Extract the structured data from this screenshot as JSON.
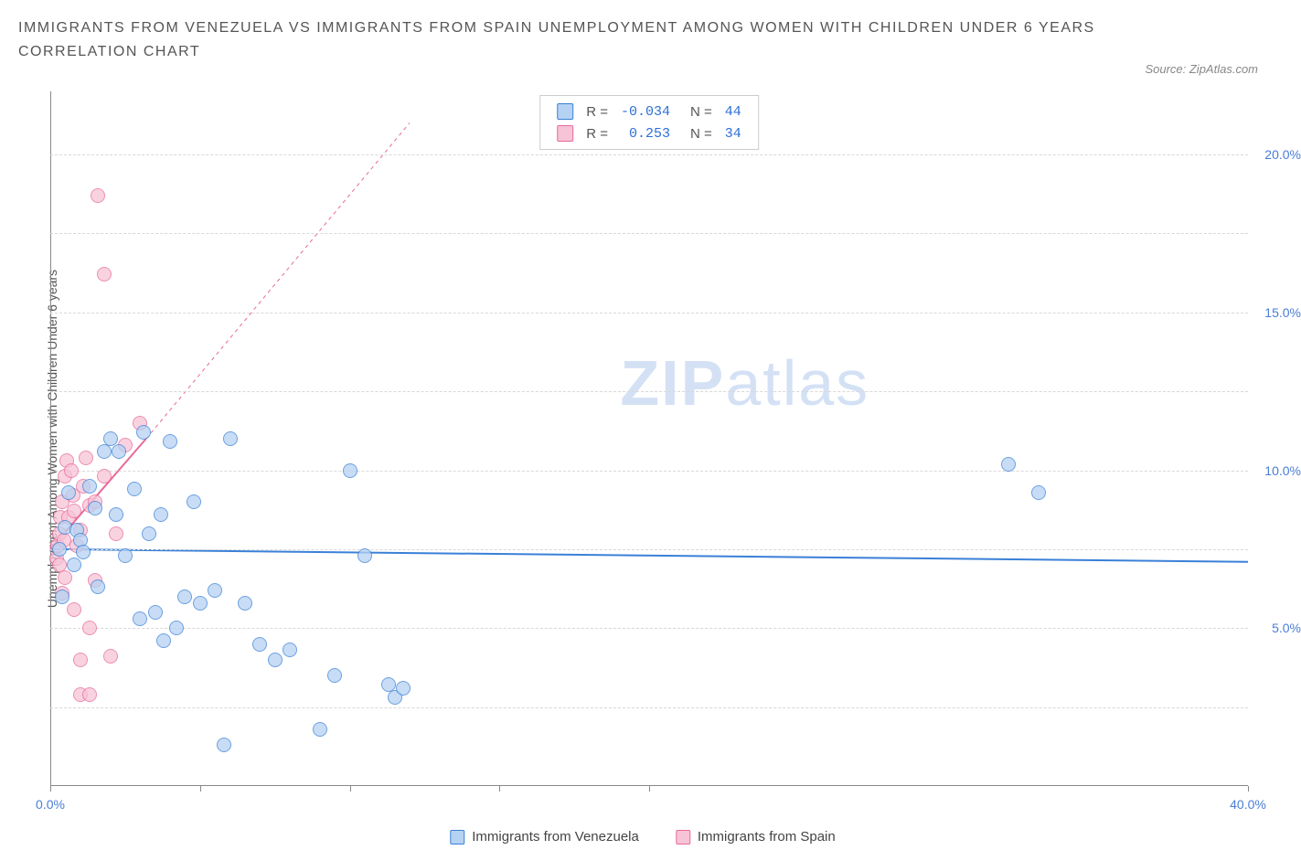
{
  "title_line1": "IMMIGRANTS FROM VENEZUELA VS IMMIGRANTS FROM SPAIN UNEMPLOYMENT AMONG WOMEN WITH CHILDREN UNDER 6 YEARS",
  "title_line2": "CORRELATION CHART",
  "source_label": "Source: ZipAtlas.com",
  "y_axis_label": "Unemployment Among Women with Children Under 6 years",
  "watermark_a": "ZIP",
  "watermark_b": "atlas",
  "chart": {
    "type": "scatter",
    "xlim": [
      0,
      40
    ],
    "ylim": [
      0,
      22
    ],
    "xticks": [
      0,
      5,
      10,
      15,
      20,
      40
    ],
    "xtick_labels": {
      "0": "0.0%",
      "40": "40.0%"
    },
    "yticks": [
      5,
      10,
      15,
      20
    ],
    "ytick_labels": {
      "5": "5.0%",
      "10": "10.0%",
      "15": "15.0%",
      "20": "20.0%"
    },
    "grid_y": [
      2.5,
      5,
      7.5,
      10,
      12.5,
      15,
      17.5,
      20
    ],
    "grid_color": "#d8d8d8",
    "background_color": "#ffffff",
    "marker_radius": 8,
    "series": [
      {
        "name": "Immigrants from Venezuela",
        "stroke": "#3a80d8",
        "fill": "#b6d2f2",
        "fill_opacity": 0.75,
        "R": "-0.034",
        "N": "44",
        "points": [
          [
            0.3,
            7.5
          ],
          [
            0.5,
            8.2
          ],
          [
            0.6,
            9.3
          ],
          [
            0.8,
            7.0
          ],
          [
            0.9,
            8.1
          ],
          [
            1.0,
            7.8
          ],
          [
            1.3,
            9.5
          ],
          [
            1.5,
            8.8
          ],
          [
            1.6,
            6.3
          ],
          [
            1.8,
            10.6
          ],
          [
            2.0,
            11.0
          ],
          [
            2.2,
            8.6
          ],
          [
            2.3,
            10.6
          ],
          [
            2.5,
            7.3
          ],
          [
            2.8,
            9.4
          ],
          [
            3.0,
            5.3
          ],
          [
            3.1,
            11.2
          ],
          [
            3.3,
            8.0
          ],
          [
            3.5,
            5.5
          ],
          [
            3.7,
            8.6
          ],
          [
            3.8,
            4.6
          ],
          [
            4.0,
            10.9
          ],
          [
            4.2,
            5.0
          ],
          [
            4.5,
            6.0
          ],
          [
            4.8,
            9.0
          ],
          [
            5.0,
            5.8
          ],
          [
            5.5,
            6.2
          ],
          [
            5.8,
            1.3
          ],
          [
            6.0,
            11.0
          ],
          [
            6.5,
            5.8
          ],
          [
            7.0,
            4.5
          ],
          [
            7.5,
            4.0
          ],
          [
            8.0,
            4.3
          ],
          [
            9.0,
            1.8
          ],
          [
            9.5,
            3.5
          ],
          [
            10.0,
            10.0
          ],
          [
            10.5,
            7.3
          ],
          [
            11.3,
            3.2
          ],
          [
            11.5,
            2.8
          ],
          [
            11.8,
            3.1
          ],
          [
            32.0,
            10.2
          ],
          [
            33.0,
            9.3
          ],
          [
            0.4,
            6.0
          ],
          [
            1.1,
            7.4
          ]
        ],
        "trend": {
          "x1": 0,
          "y1": 7.5,
          "x2": 40,
          "y2": 7.1,
          "width": 2
        }
      },
      {
        "name": "Immigrants from Spain",
        "stroke": "#e86a9a",
        "fill": "#f7c3d6",
        "fill_opacity": 0.75,
        "R": "0.253",
        "N": "34",
        "points": [
          [
            0.2,
            7.2
          ],
          [
            0.25,
            7.6
          ],
          [
            0.3,
            8.0
          ],
          [
            0.35,
            8.5
          ],
          [
            0.4,
            9.0
          ],
          [
            0.45,
            7.8
          ],
          [
            0.5,
            9.8
          ],
          [
            0.55,
            10.3
          ],
          [
            0.6,
            8.5
          ],
          [
            0.7,
            10.0
          ],
          [
            0.75,
            9.2
          ],
          [
            0.8,
            8.7
          ],
          [
            0.9,
            7.6
          ],
          [
            1.0,
            8.1
          ],
          [
            1.1,
            9.5
          ],
          [
            1.2,
            10.4
          ],
          [
            1.3,
            8.9
          ],
          [
            1.5,
            9.0
          ],
          [
            0.4,
            6.1
          ],
          [
            0.5,
            6.6
          ],
          [
            0.8,
            5.6
          ],
          [
            1.0,
            4.0
          ],
          [
            1.3,
            5.0
          ],
          [
            1.5,
            6.5
          ],
          [
            1.8,
            9.8
          ],
          [
            2.0,
            4.1
          ],
          [
            2.2,
            8.0
          ],
          [
            2.5,
            10.8
          ],
          [
            3.0,
            11.5
          ],
          [
            1.0,
            2.9
          ],
          [
            1.3,
            2.9
          ],
          [
            1.6,
            18.7
          ],
          [
            1.8,
            16.2
          ],
          [
            0.3,
            7.0
          ]
        ],
        "trend": {
          "x1": 0,
          "y1": 7.5,
          "x2": 3.2,
          "y2": 11.0,
          "width": 2,
          "dash_x2": 12.0,
          "dash_y2": 21.0
        }
      }
    ]
  },
  "legend_top_labels": {
    "R": "R =",
    "N": "N ="
  },
  "legend_bottom": [
    {
      "label": "Immigrants from Venezuela",
      "stroke": "#3a80d8",
      "fill": "#b6d2f2"
    },
    {
      "label": "Immigrants from Spain",
      "stroke": "#e86a9a",
      "fill": "#f7c3d6"
    }
  ]
}
